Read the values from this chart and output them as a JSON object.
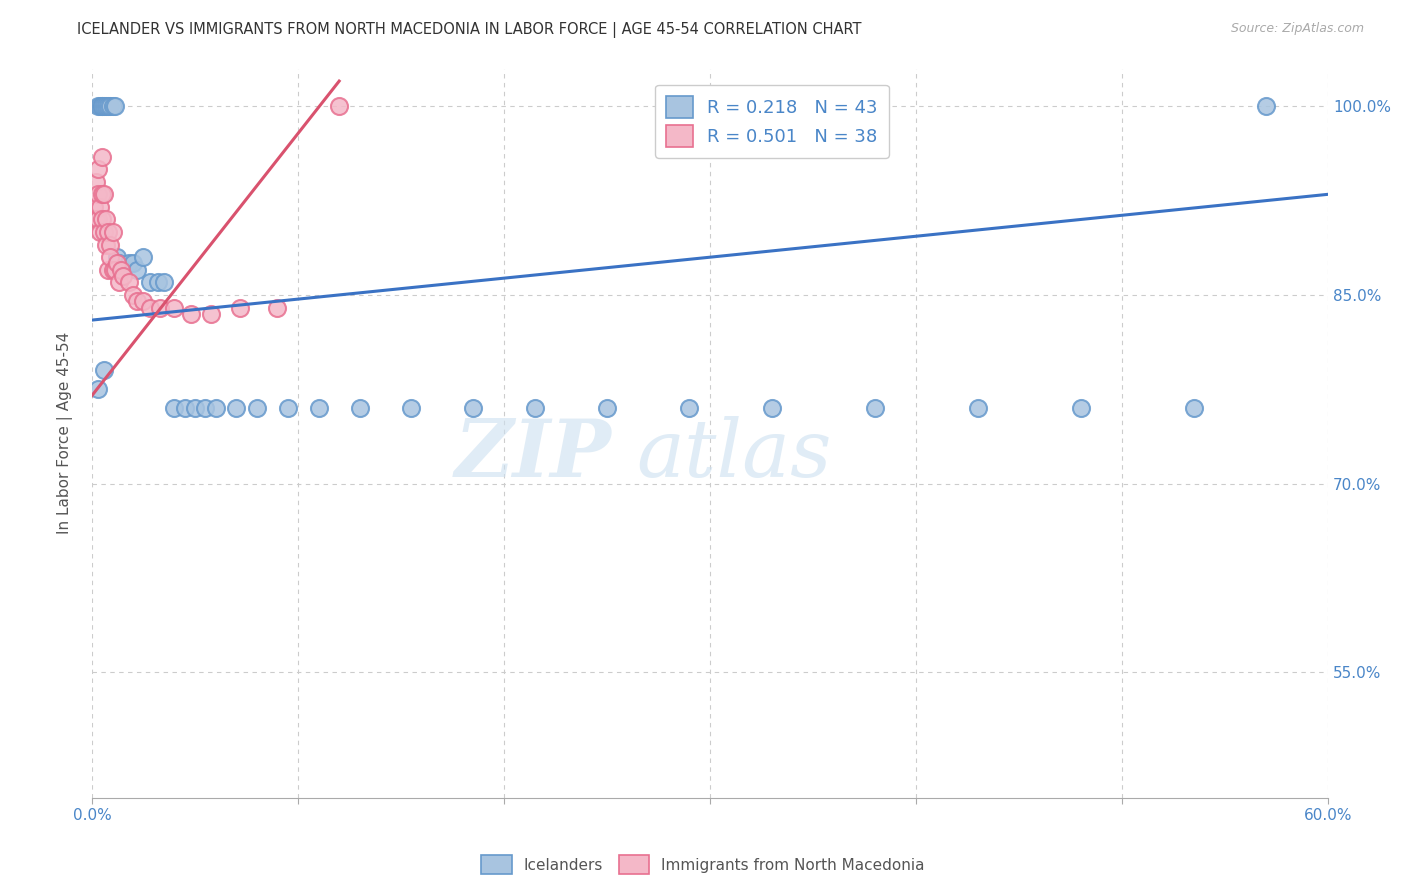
{
  "title": "ICELANDER VS IMMIGRANTS FROM NORTH MACEDONIA IN LABOR FORCE | AGE 45-54 CORRELATION CHART",
  "source": "Source: ZipAtlas.com",
  "ylabel": "In Labor Force | Age 45-54",
  "xlim": [
    0.0,
    0.6
  ],
  "ylim": [
    0.45,
    1.03
  ],
  "xticks": [
    0.0,
    0.1,
    0.2,
    0.3,
    0.4,
    0.5,
    0.6
  ],
  "xticklabels": [
    "0.0%",
    "",
    "",
    "",
    "",
    "",
    "60.0%"
  ],
  "yticks": [
    0.55,
    0.7,
    0.85,
    1.0
  ],
  "yticklabels": [
    "55.0%",
    "70.0%",
    "85.0%",
    "100.0%"
  ],
  "blue_R": 0.218,
  "blue_N": 43,
  "pink_R": 0.501,
  "pink_N": 38,
  "blue_color": "#a8c4e0",
  "blue_edge": "#6699cc",
  "pink_color": "#f4b8c8",
  "pink_edge": "#e87090",
  "blue_line_color": "#3a72c4",
  "pink_line_color": "#d9526e",
  "legend_label_blue": "Icelanders",
  "legend_label_pink": "Immigrants from North Macedonia",
  "blue_x": [
    0.003,
    0.004,
    0.005,
    0.005,
    0.006,
    0.007,
    0.008,
    0.009,
    0.01,
    0.011,
    0.012,
    0.013,
    0.015,
    0.018,
    0.02,
    0.022,
    0.025,
    0.028,
    0.032,
    0.035,
    0.04,
    0.045,
    0.05,
    0.055,
    0.06,
    0.07,
    0.08,
    0.095,
    0.11,
    0.13,
    0.155,
    0.185,
    0.215,
    0.25,
    0.29,
    0.33,
    0.38,
    0.43,
    0.48,
    0.535,
    0.57,
    0.003,
    0.006
  ],
  "blue_y": [
    1.0,
    1.0,
    1.0,
    1.0,
    1.0,
    1.0,
    1.0,
    1.0,
    1.0,
    1.0,
    0.88,
    0.875,
    0.87,
    0.875,
    0.875,
    0.87,
    0.88,
    0.86,
    0.86,
    0.86,
    0.76,
    0.76,
    0.76,
    0.76,
    0.76,
    0.76,
    0.76,
    0.76,
    0.76,
    0.76,
    0.76,
    0.76,
    0.76,
    0.76,
    0.76,
    0.76,
    0.76,
    0.76,
    0.76,
    0.76,
    1.0,
    0.775,
    0.79
  ],
  "pink_x": [
    0.001,
    0.002,
    0.002,
    0.003,
    0.003,
    0.003,
    0.004,
    0.004,
    0.005,
    0.005,
    0.005,
    0.006,
    0.006,
    0.007,
    0.007,
    0.008,
    0.008,
    0.009,
    0.009,
    0.01,
    0.01,
    0.011,
    0.012,
    0.013,
    0.014,
    0.015,
    0.018,
    0.02,
    0.022,
    0.025,
    0.028,
    0.033,
    0.04,
    0.048,
    0.058,
    0.072,
    0.09,
    0.12
  ],
  "pink_y": [
    0.92,
    0.94,
    0.91,
    0.95,
    0.93,
    0.91,
    0.9,
    0.92,
    0.91,
    0.93,
    0.96,
    0.9,
    0.93,
    0.91,
    0.89,
    0.9,
    0.87,
    0.89,
    0.88,
    0.87,
    0.9,
    0.87,
    0.875,
    0.86,
    0.87,
    0.865,
    0.86,
    0.85,
    0.845,
    0.845,
    0.84,
    0.84,
    0.84,
    0.835,
    0.835,
    0.84,
    0.84,
    1.0
  ],
  "watermark_zip": "ZIP",
  "watermark_atlas": "atlas",
  "background_color": "#ffffff",
  "grid_color": "#cccccc"
}
